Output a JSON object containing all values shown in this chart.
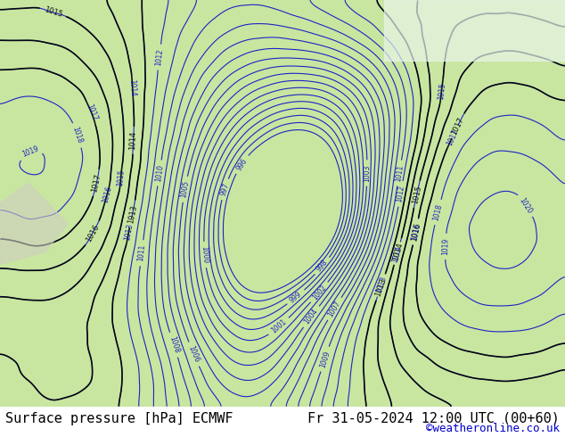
{
  "title_left": "Surface pressure [hPa] ECMWF",
  "title_right": "Fr 31-05-2024 12:00 UTC (00+60)",
  "credit": "©weatheronline.co.uk",
  "background_land": "#c8e6a0",
  "background_sea": "#ffffff",
  "contour_color_blue": "#0000cc",
  "contour_color_black": "#000000",
  "contour_color_red": "#cc0000",
  "highlight_color": "#ff4444",
  "text_color_left": "#000000",
  "text_color_right": "#000000",
  "credit_color": "#0000cc",
  "fontsize_title": 11,
  "fontsize_credit": 9,
  "pressure_min": 995,
  "pressure_max": 1020,
  "contour_interval": 1,
  "figsize": [
    6.34,
    4.9
  ],
  "dpi": 100
}
